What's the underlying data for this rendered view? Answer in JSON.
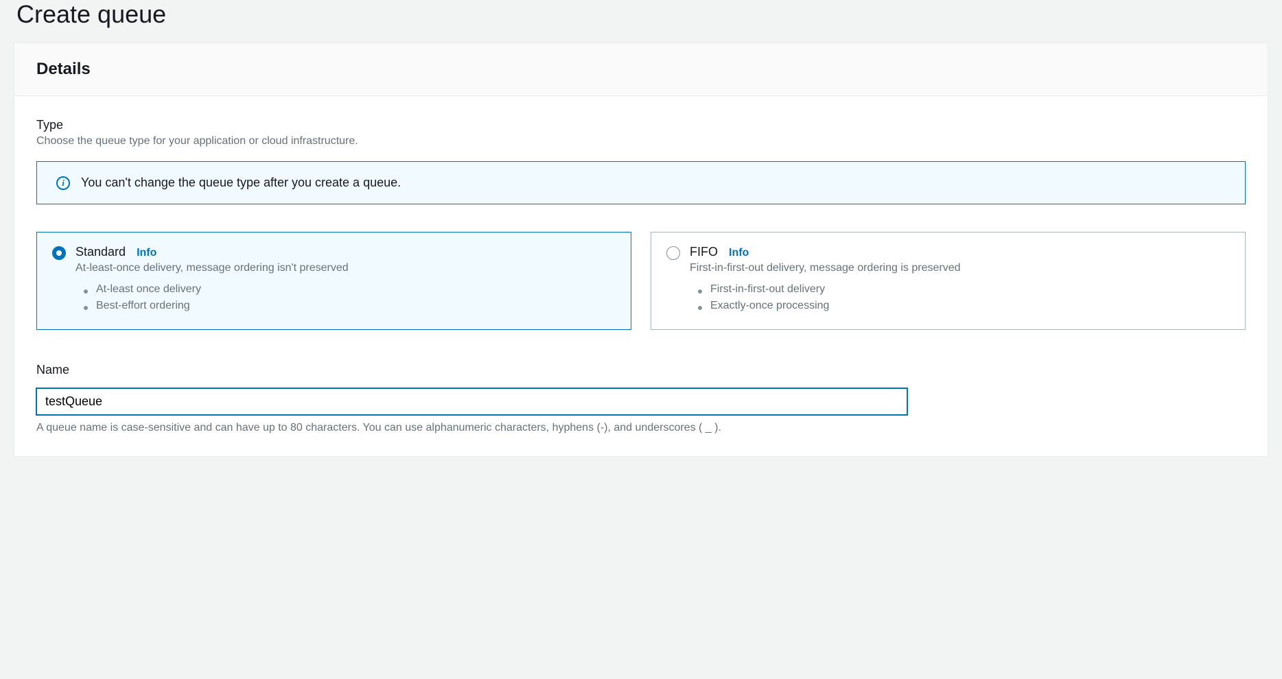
{
  "page": {
    "title": "Create queue"
  },
  "panel": {
    "header": "Details"
  },
  "typeSection": {
    "label": "Type",
    "description": "Choose the queue type for your application or cloud infrastructure.",
    "alert": "You can't change the queue type after you create a queue."
  },
  "queueTypes": {
    "standard": {
      "title": "Standard",
      "infoLabel": "Info",
      "description": "At-least-once delivery, message ordering isn't preserved",
      "bullets": [
        "At-least once delivery",
        "Best-effort ordering"
      ],
      "selected": true
    },
    "fifo": {
      "title": "FIFO",
      "infoLabel": "Info",
      "description": "First-in-first-out delivery, message ordering is preserved",
      "bullets": [
        "First-in-first-out delivery",
        "Exactly-once processing"
      ],
      "selected": false
    }
  },
  "nameSection": {
    "label": "Name",
    "value": "testQueue",
    "help": "A queue name is case-sensitive and can have up to 80 characters. You can use alphanumeric characters, hyphens (-), and underscores ( _ )."
  },
  "colors": {
    "primary": "#0073bb",
    "textPrimary": "#16191f",
    "textSecondary": "#687078",
    "bgPage": "#f2f3f3",
    "bgAlert": "#f1faff",
    "border": "#aab7b8"
  }
}
